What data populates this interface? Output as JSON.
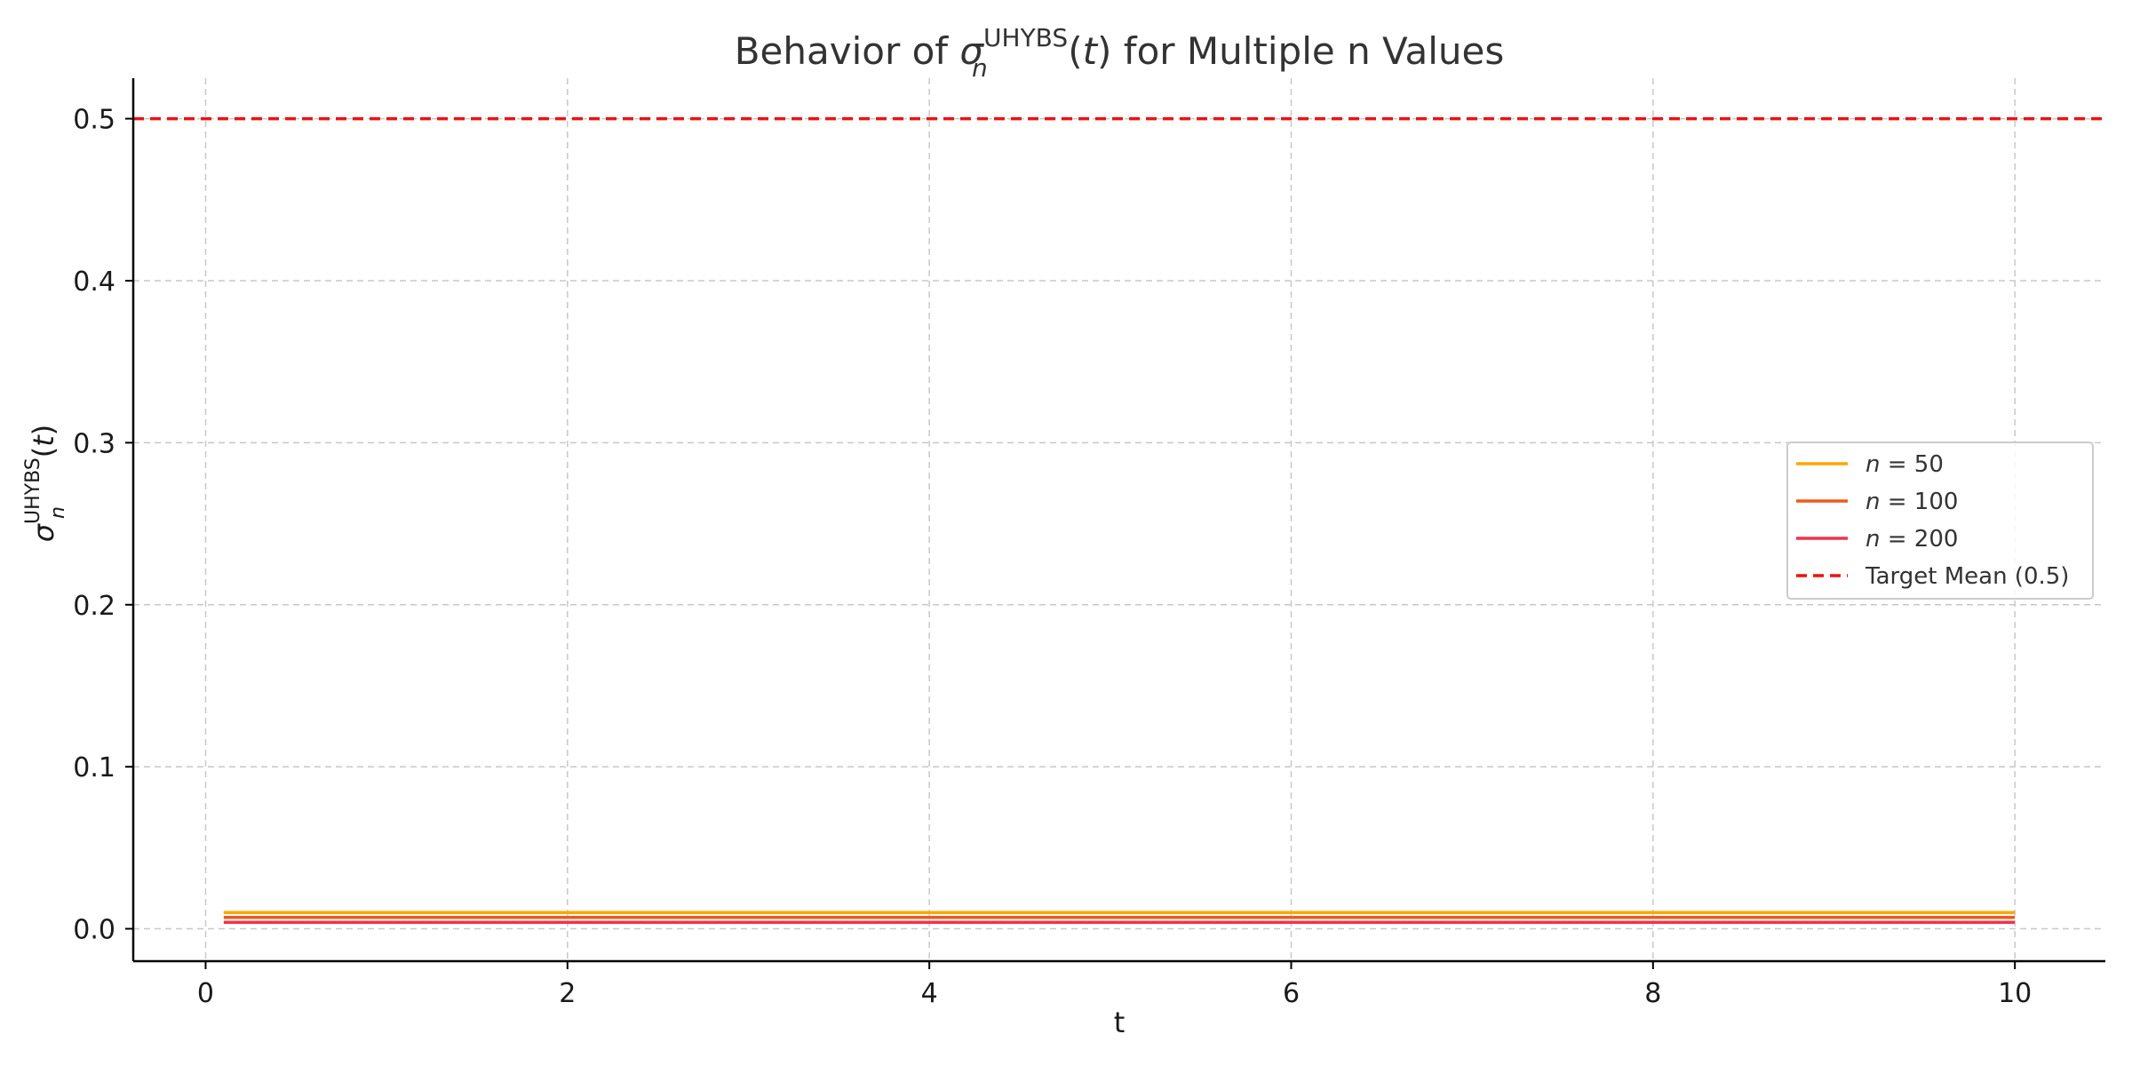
{
  "chart_data": {
    "type": "line",
    "title": {
      "pre": "Behavior of ",
      "sym": "σ",
      "sub": "n",
      "sup": "UHYBS",
      "post_open": "(",
      "arg": "t",
      "post_close": ") for Multiple n Values"
    },
    "xlabel": "t",
    "ylabel": {
      "sym": "σ",
      "sub": "n",
      "sup": "UHYBS",
      "open": "(",
      "arg": "t",
      "close": ")"
    },
    "xlim": [
      -0.4,
      10.5
    ],
    "ylim": [
      -0.02,
      0.525
    ],
    "xticks": [
      0,
      2,
      4,
      6,
      8,
      10
    ],
    "yticks": [
      0.0,
      0.1,
      0.2,
      0.3,
      0.4,
      0.5
    ],
    "ytick_labels": [
      "0.0",
      "0.1",
      "0.2",
      "0.3",
      "0.4",
      "0.5"
    ],
    "grid": true,
    "legend_position": "center-right",
    "series": [
      {
        "name_var": "n",
        "name_eq": " = 50",
        "x": [
          0.1,
          10
        ],
        "y": [
          0.01,
          0.01
        ],
        "color": "#FFA500",
        "style": "solid"
      },
      {
        "name_var": "n",
        "name_eq": " = 100",
        "x": [
          0.1,
          10
        ],
        "y": [
          0.007,
          0.007
        ],
        "color": "#F05A1A",
        "style": "solid"
      },
      {
        "name_var": "n",
        "name_eq": " = 200",
        "x": [
          0.1,
          10
        ],
        "y": [
          0.004,
          0.004
        ],
        "color": "#F0334F",
        "style": "solid"
      }
    ],
    "reference_line": {
      "name": "Target Mean (0.5)",
      "y": 0.5,
      "color": "#EE1111",
      "style": "dashed"
    }
  }
}
